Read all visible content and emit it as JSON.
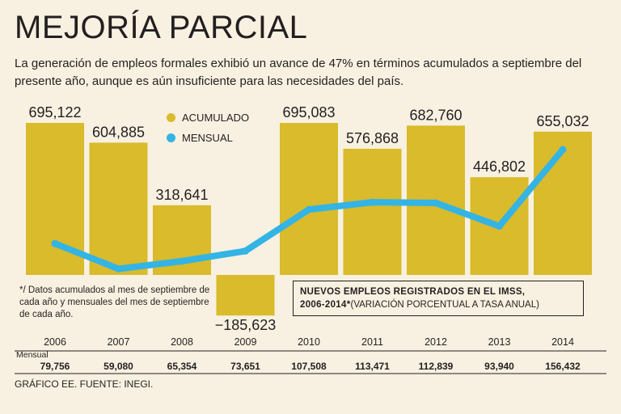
{
  "header": {
    "title": "MEJORÍA PARCIAL",
    "subtitle": "La generación de empleos formales exhibió un avance de 47% en términos acumulados a septiembre del presente año, aunque es aún insuficiente para las necesidades del país."
  },
  "legend": {
    "accumulated_label": "ACUMULADO",
    "monthly_label": "MENSUAL"
  },
  "footnote": "*/ Datos acumulados al mes de septiembre de cada año y mensuales del mes de septiembre de cada año.",
  "subchart": {
    "title_bold_line1": "NUEVOS EMPLEOS REGISTRADOS EN EL IMSS,",
    "title_bold_line2": "2006-2014*",
    "title_regular": "(VARIACIÓN PORCENTUAL A TASA ANUAL)"
  },
  "monthly_row_label": "Mensual",
  "source": "GRÁFICO EE. FUENTE: INEGI.",
  "colors": {
    "bar": "#d9bb2b",
    "line": "#33b4e5",
    "background": "#f8f1e1",
    "text": "#231f20"
  },
  "chart_data": {
    "type": "bar",
    "categories": [
      "2006",
      "2007",
      "2008",
      "2009",
      "2010",
      "2011",
      "2012",
      "2013",
      "2014"
    ],
    "series": [
      {
        "name": "ACUMULADO",
        "type": "bar",
        "values": [
          695122,
          604885,
          318641,
          -185623,
          695083,
          576868,
          682760,
          446802,
          655032
        ],
        "labels": [
          "695,122",
          "604,885",
          "318,641",
          "−185,623",
          "695,083",
          "576,868",
          "682,760",
          "446,802",
          "655,032"
        ]
      },
      {
        "name": "MENSUAL",
        "type": "line",
        "values": [
          79756,
          59080,
          65354,
          73651,
          107508,
          113471,
          112839,
          93940,
          156432
        ],
        "labels": [
          "79,756",
          "59,080",
          "65,354",
          "73,651",
          "107,508",
          "113,471",
          "112,839",
          "93,940",
          "156,432"
        ]
      }
    ],
    "ylim": [
      -200000,
      700000
    ]
  }
}
